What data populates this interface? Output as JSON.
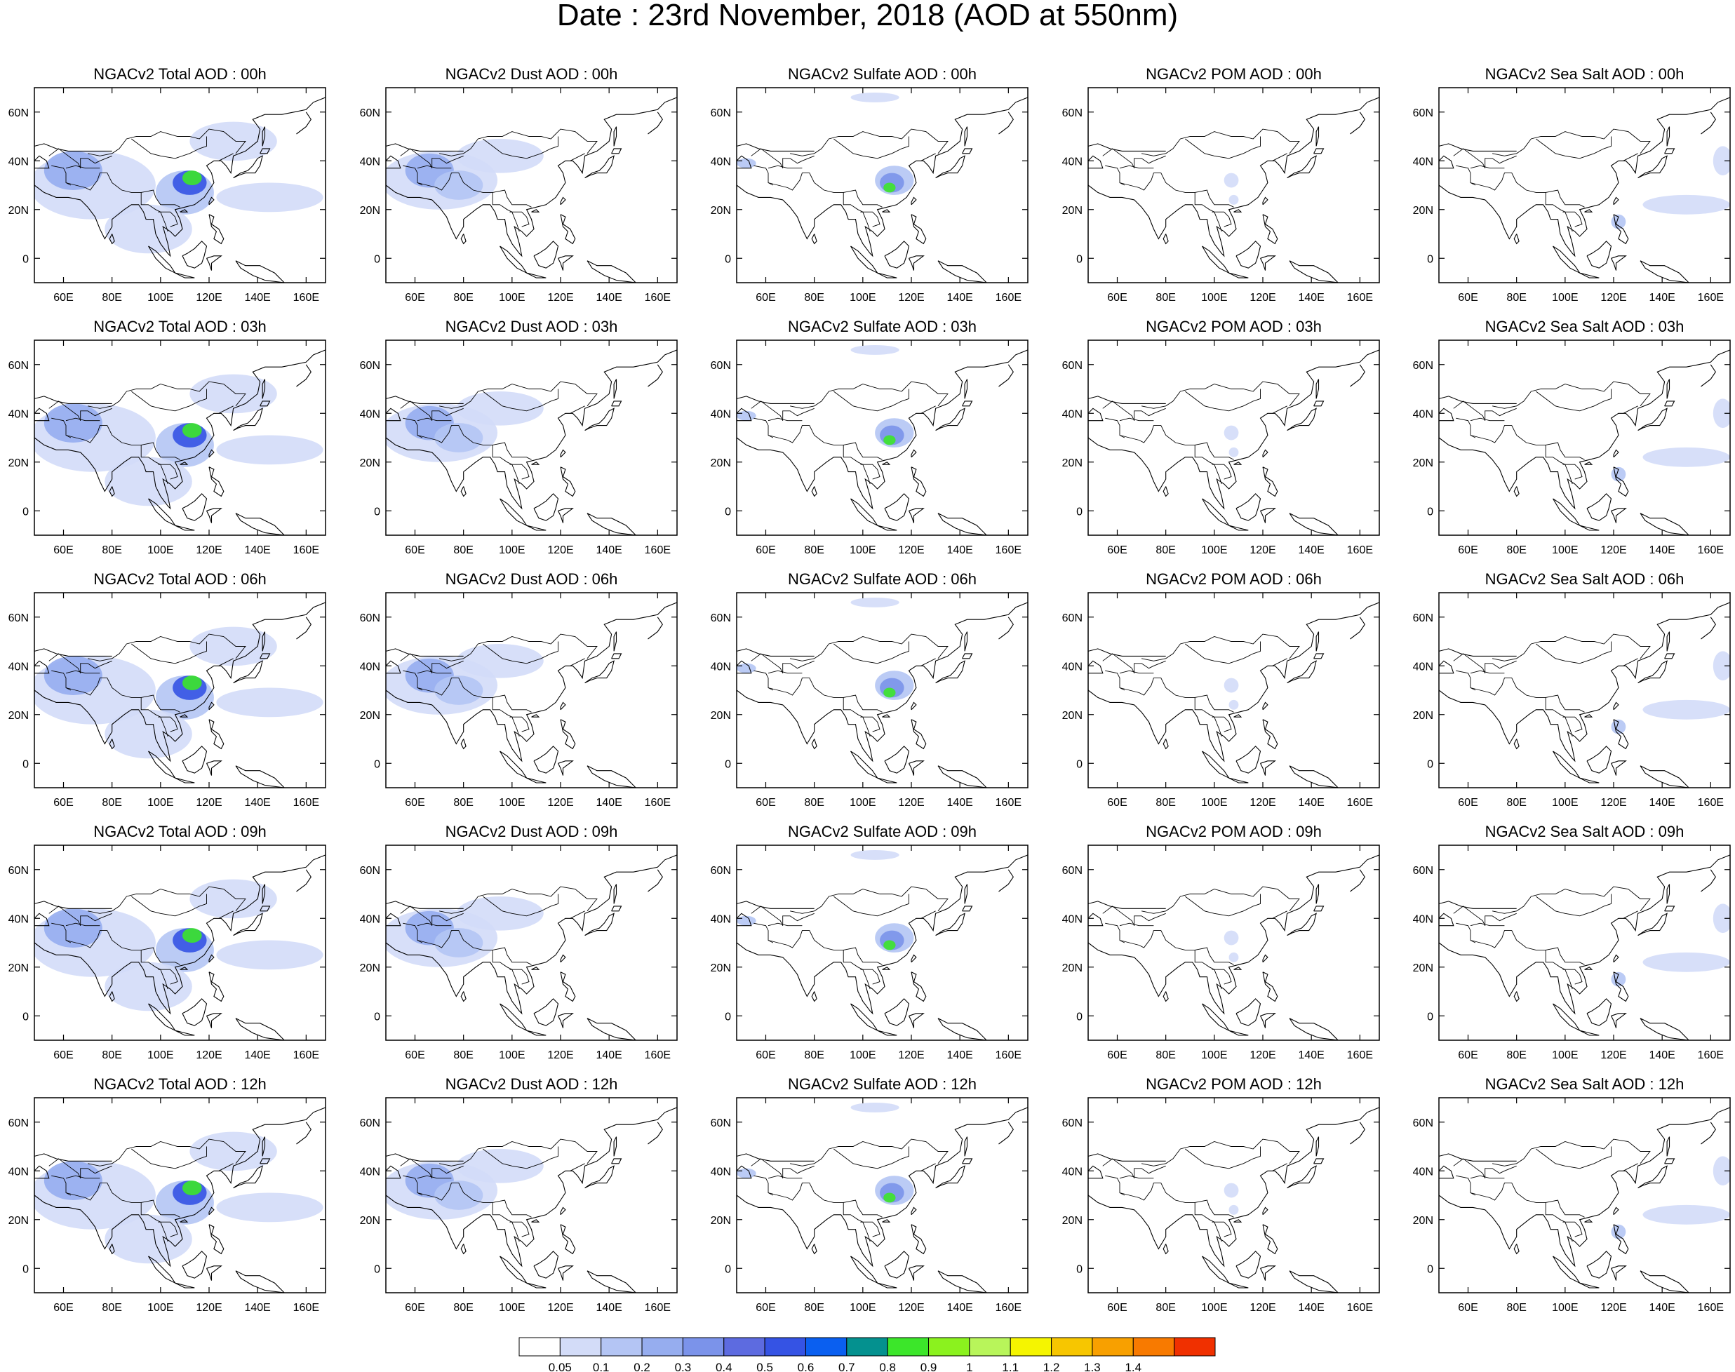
{
  "title": "Date : 23rd November, 2018 (AOD at 550nm)",
  "panels": [
    [
      "NGACv2 Total AOD : 00h",
      "NGACv2 Dust AOD : 00h",
      "NGACv2 Sulfate AOD : 00h",
      "NGACv2 POM AOD : 00h",
      "NGACv2 Sea Salt AOD : 00h"
    ],
    [
      "NGACv2 Total AOD : 03h",
      "NGACv2 Dust AOD : 03h",
      "NGACv2 Sulfate AOD : 03h",
      "NGACv2 POM AOD : 03h",
      "NGACv2 Sea Salt AOD : 03h"
    ],
    [
      "NGACv2 Total AOD : 06h",
      "NGACv2 Dust AOD : 06h",
      "NGACv2 Sulfate AOD : 06h",
      "NGACv2 POM AOD : 06h",
      "NGACv2 Sea Salt AOD : 06h"
    ],
    [
      "NGACv2 Total AOD : 09h",
      "NGACv2 Dust AOD : 09h",
      "NGACv2 Sulfate AOD : 09h",
      "NGACv2 POM AOD : 09h",
      "NGACv2 Sea Salt  AOD : 09h"
    ],
    [
      "NGACv2 Total AOD  : 12h",
      "NGACv2 Dust AOD : 12h",
      "NGACv2 Sulfate AOD : 12h",
      "NGACv2 POM  AOD : 12h",
      "NGACv2 Sea Salt  AOD : 12h"
    ]
  ],
  "lon_ticks": [
    "60E",
    "80E",
    "100E",
    "120E",
    "140E",
    "160E"
  ],
  "lat_ticks": [
    "60N",
    "40N",
    "20N",
    "0"
  ],
  "map_extent": {
    "lon": [
      48,
      168
    ],
    "lat": [
      -10,
      70
    ]
  },
  "colorbar": {
    "labels": [
      "0.05",
      "0.1",
      "0.2",
      "0.3",
      "0.4",
      "0.5",
      "0.6",
      "0.7",
      "0.8",
      "0.9",
      "1",
      "1.1",
      "1.2",
      "1.3",
      "1.4"
    ],
    "colors": [
      "#ffffff",
      "#d3dcf8",
      "#b4c5f4",
      "#96adef",
      "#7b93ea",
      "#5d6be0",
      "#3553e4",
      "#0a5ff0",
      "#04918f",
      "#3ce62a",
      "#8bf21e",
      "#b8f55a",
      "#f5f500",
      "#f7c600",
      "#f8a000",
      "#f87a00",
      "#f03000"
    ]
  }
}
